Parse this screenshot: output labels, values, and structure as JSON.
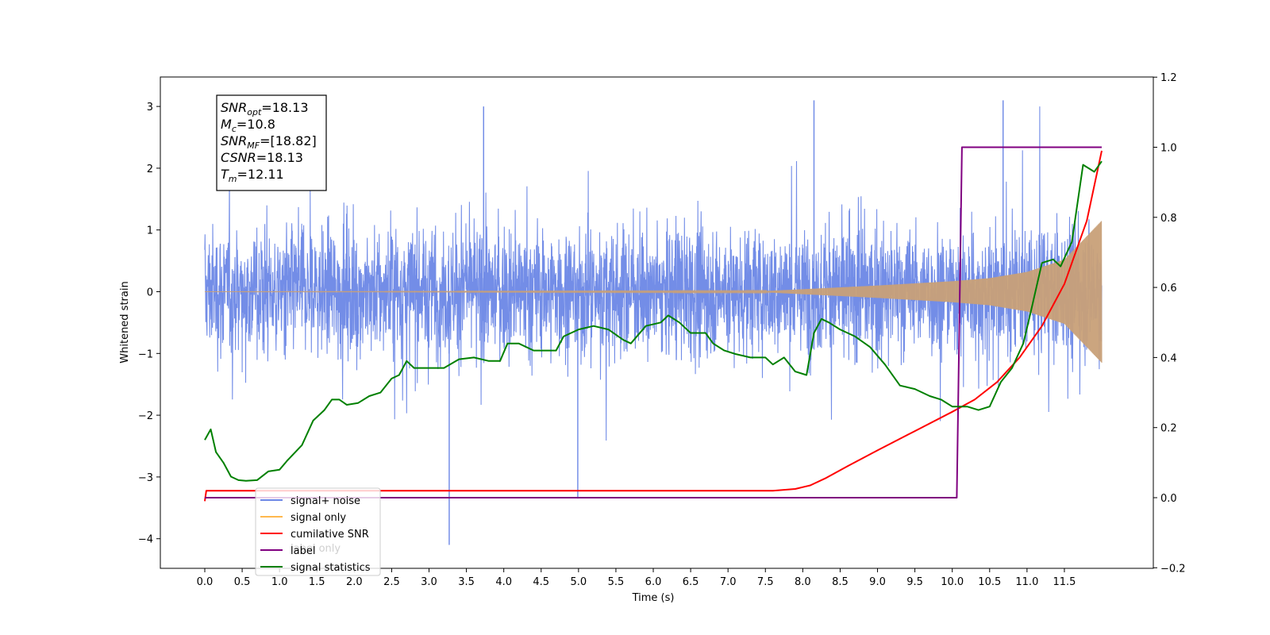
{
  "chart_data": {
    "type": "line",
    "xlabel": "Time (s)",
    "ylabel": "Whitened strain",
    "xlim": [
      -0.6,
      12.6
    ],
    "ylim": [
      -4.5,
      3.45
    ],
    "y2lim": [
      -0.2,
      1.2
    ],
    "x_ticks": [
      "0.0",
      "0.5",
      "1.0",
      "1.5",
      "2.0",
      "2.5",
      "3.0",
      "3.5",
      "4.0",
      "4.5",
      "5.0",
      "5.5",
      "6.0",
      "6.5",
      "7.0",
      "7.5",
      "8.0",
      "8.5",
      "9.0",
      "9.5",
      "10.0",
      "10.5",
      "11.0",
      "11.5"
    ],
    "y_ticks": [
      "3",
      "2",
      "1",
      "0",
      "−1",
      "−2",
      "−3",
      "−4"
    ],
    "y2_ticks": [
      "1.2",
      "1.0",
      "0.8",
      "0.6",
      "0.4",
      "0.2",
      "0.0",
      "−0.2"
    ],
    "annotation": {
      "lines": [
        {
          "main": "SNR",
          "sub": "opt",
          "rest": "=18.13"
        },
        {
          "main": "M",
          "sub": "c",
          "rest": "=10.8"
        },
        {
          "main": "SNR",
          "sub": "MF",
          "rest": "=[18.82]"
        },
        {
          "main": "CSNR",
          "sub": "",
          "rest": "=18.13"
        },
        {
          "main": "T",
          "sub": "m",
          "rest": "=12.11"
        }
      ]
    },
    "legend": {
      "placement": "lower-left",
      "entries": [
        {
          "label": "signal+ noise",
          "color": "#6b87e6"
        },
        {
          "label": "signal only",
          "color": "#ffb84d"
        },
        {
          "label": "cumilative SNR",
          "color": "#ff0000"
        },
        {
          "label": "label",
          "color": "#800080"
        },
        {
          "label": "signal statistics",
          "color": "#008000"
        }
      ],
      "ghost_text": "label only"
    },
    "series": [
      {
        "name": "signal+ noise",
        "axis": "left",
        "color": "#6b87e6",
        "description": "dense whitened noise band, roughly ±1.5 with spikes to ±3",
        "x_range": [
          0.0,
          12.0
        ],
        "spikes": [
          {
            "x": 3.27,
            "y": -4.1
          },
          {
            "x": 4.99,
            "y": -3.35
          },
          {
            "x": 3.73,
            "y": 3.0
          },
          {
            "x": 8.15,
            "y": 3.1
          },
          {
            "x": 10.68,
            "y": 3.1
          }
        ]
      },
      {
        "name": "signal only",
        "axis": "left",
        "color": "#c8a078",
        "description": "chirp, negligible until ~7.5 s, envelope grows to ~1.15 at 12 s",
        "envelope": [
          [
            0.0,
            0.0
          ],
          [
            7.5,
            0.01
          ],
          [
            8.0,
            0.04
          ],
          [
            9.0,
            0.1
          ],
          [
            10.0,
            0.17
          ],
          [
            10.5,
            0.22
          ],
          [
            11.0,
            0.32
          ],
          [
            11.5,
            0.52
          ],
          [
            12.0,
            1.15
          ]
        ]
      },
      {
        "name": "cumilative SNR",
        "axis": "right",
        "color": "#ff0000",
        "points": [
          [
            0.0,
            -0.01
          ],
          [
            0.02,
            0.02
          ],
          [
            7.6,
            0.02
          ],
          [
            7.9,
            0.025
          ],
          [
            8.1,
            0.035
          ],
          [
            8.3,
            0.055
          ],
          [
            8.6,
            0.09
          ],
          [
            9.0,
            0.135
          ],
          [
            9.5,
            0.19
          ],
          [
            10.0,
            0.245
          ],
          [
            10.3,
            0.28
          ],
          [
            10.6,
            0.33
          ],
          [
            10.9,
            0.4
          ],
          [
            11.2,
            0.49
          ],
          [
            11.5,
            0.61
          ],
          [
            11.8,
            0.79
          ],
          [
            12.0,
            0.99
          ]
        ]
      },
      {
        "name": "label",
        "axis": "right",
        "color": "#800080",
        "points": [
          [
            0.0,
            0.0
          ],
          [
            10.06,
            0.0
          ],
          [
            10.13,
            1.0
          ],
          [
            12.0,
            1.0
          ]
        ]
      },
      {
        "name": "signal statistics",
        "axis": "right",
        "color": "#008000",
        "points": [
          [
            0.0,
            0.165
          ],
          [
            0.08,
            0.195
          ],
          [
            0.15,
            0.13
          ],
          [
            0.25,
            0.1
          ],
          [
            0.35,
            0.06
          ],
          [
            0.45,
            0.05
          ],
          [
            0.55,
            0.048
          ],
          [
            0.7,
            0.05
          ],
          [
            0.85,
            0.075
          ],
          [
            1.0,
            0.08
          ],
          [
            1.1,
            0.105
          ],
          [
            1.3,
            0.15
          ],
          [
            1.45,
            0.22
          ],
          [
            1.6,
            0.25
          ],
          [
            1.7,
            0.28
          ],
          [
            1.8,
            0.28
          ],
          [
            1.9,
            0.265
          ],
          [
            2.05,
            0.27
          ],
          [
            2.2,
            0.29
          ],
          [
            2.35,
            0.3
          ],
          [
            2.5,
            0.34
          ],
          [
            2.6,
            0.35
          ],
          [
            2.7,
            0.39
          ],
          [
            2.8,
            0.37
          ],
          [
            3.0,
            0.37
          ],
          [
            3.2,
            0.37
          ],
          [
            3.4,
            0.395
          ],
          [
            3.6,
            0.4
          ],
          [
            3.8,
            0.39
          ],
          [
            3.95,
            0.39
          ],
          [
            4.05,
            0.44
          ],
          [
            4.2,
            0.44
          ],
          [
            4.4,
            0.42
          ],
          [
            4.7,
            0.42
          ],
          [
            4.8,
            0.46
          ],
          [
            5.0,
            0.48
          ],
          [
            5.2,
            0.49
          ],
          [
            5.4,
            0.48
          ],
          [
            5.6,
            0.45
          ],
          [
            5.7,
            0.44
          ],
          [
            5.9,
            0.49
          ],
          [
            6.1,
            0.5
          ],
          [
            6.2,
            0.52
          ],
          [
            6.35,
            0.5
          ],
          [
            6.5,
            0.47
          ],
          [
            6.7,
            0.47
          ],
          [
            6.8,
            0.44
          ],
          [
            6.95,
            0.42
          ],
          [
            7.1,
            0.41
          ],
          [
            7.3,
            0.4
          ],
          [
            7.5,
            0.4
          ],
          [
            7.6,
            0.38
          ],
          [
            7.75,
            0.4
          ],
          [
            7.9,
            0.36
          ],
          [
            8.05,
            0.35
          ],
          [
            8.15,
            0.47
          ],
          [
            8.25,
            0.51
          ],
          [
            8.35,
            0.5
          ],
          [
            8.5,
            0.48
          ],
          [
            8.7,
            0.46
          ],
          [
            8.9,
            0.43
          ],
          [
            9.1,
            0.38
          ],
          [
            9.3,
            0.32
          ],
          [
            9.5,
            0.31
          ],
          [
            9.7,
            0.29
          ],
          [
            9.85,
            0.28
          ],
          [
            10.0,
            0.26
          ],
          [
            10.2,
            0.26
          ],
          [
            10.35,
            0.25
          ],
          [
            10.5,
            0.26
          ],
          [
            10.65,
            0.33
          ],
          [
            10.8,
            0.37
          ],
          [
            10.95,
            0.44
          ],
          [
            11.05,
            0.53
          ],
          [
            11.2,
            0.67
          ],
          [
            11.35,
            0.68
          ],
          [
            11.45,
            0.66
          ],
          [
            11.6,
            0.73
          ],
          [
            11.75,
            0.95
          ],
          [
            11.9,
            0.93
          ],
          [
            12.0,
            0.96
          ]
        ]
      }
    ]
  }
}
